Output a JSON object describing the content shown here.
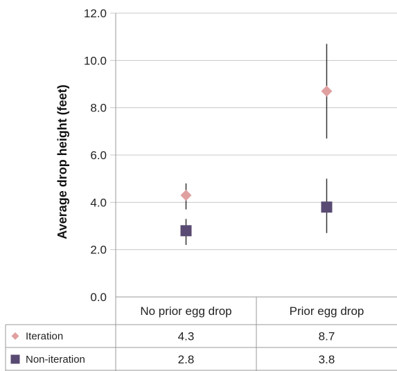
{
  "chart_data": {
    "type": "scatter",
    "title": "",
    "xlabel": "",
    "ylabel": "Average drop height (feet)",
    "ylim": [
      0,
      12
    ],
    "yticks": [
      "0.0",
      "2.0",
      "4.0",
      "6.0",
      "8.0",
      "10.0",
      "12.0"
    ],
    "categories": [
      "No prior egg drop",
      "Prior egg drop"
    ],
    "grid": true,
    "legend": "table-below",
    "series": [
      {
        "name": "Iteration",
        "marker": "diamond",
        "color": "#e0a0a0",
        "values": [
          4.3,
          8.7
        ],
        "labels": [
          "4.3",
          "8.7"
        ],
        "error_low": [
          3.7,
          6.7
        ],
        "error_high": [
          4.8,
          10.7
        ]
      },
      {
        "name": "Non-iteration",
        "marker": "square",
        "color": "#584a72",
        "values": [
          2.8,
          3.8
        ],
        "labels": [
          "2.8",
          "3.8"
        ],
        "error_low": [
          2.2,
          2.7
        ],
        "error_high": [
          3.3,
          5.0
        ]
      }
    ]
  }
}
